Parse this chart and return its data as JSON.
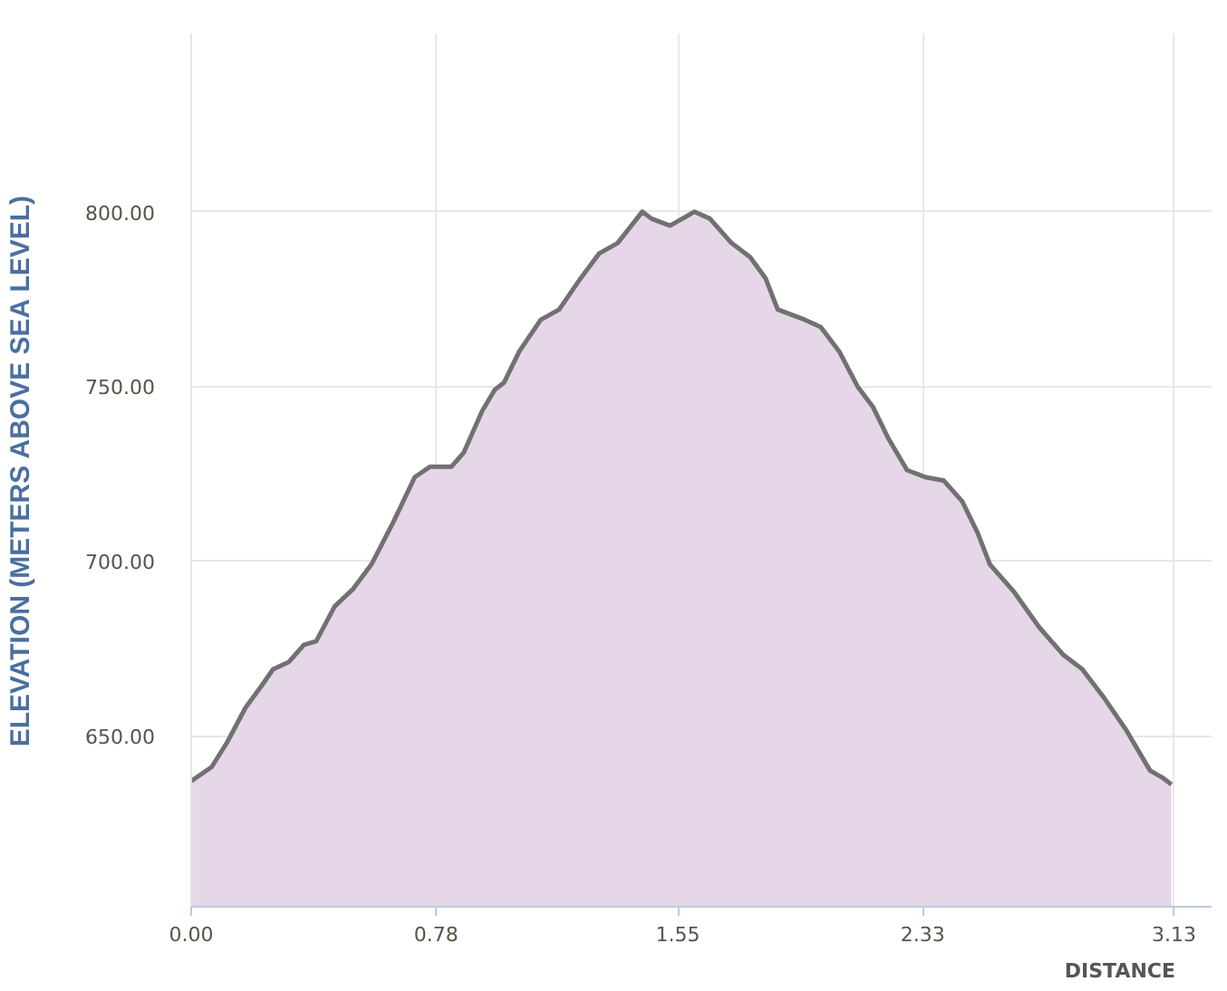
{
  "chart_data": {
    "type": "area",
    "xlabel": "DISTANCE",
    "ylabel": "ELEVATION (METERS ABOVE SEA LEVEL)",
    "x": [
      0,
      0.065,
      0.114,
      0.173,
      0.222,
      0.261,
      0.31,
      0.359,
      0.398,
      0.457,
      0.516,
      0.574,
      0.643,
      0.712,
      0.761,
      0.829,
      0.868,
      0.927,
      0.967,
      0.996,
      1.045,
      1.113,
      1.172,
      1.241,
      1.299,
      1.358,
      1.437,
      1.466,
      1.525,
      1.603,
      1.652,
      1.721,
      1.78,
      1.829,
      1.868,
      1.927,
      1.956,
      2.005,
      2.064,
      2.122,
      2.172,
      2.221,
      2.28,
      2.338,
      2.397,
      2.456,
      2.505,
      2.544,
      2.622,
      2.701,
      2.779,
      2.838,
      2.906,
      2.975,
      3.054,
      3.093,
      3.122
    ],
    "series": [
      {
        "color": "#e6d7e8",
        "values": [
          637,
          641,
          648,
          658,
          664,
          669,
          671,
          676,
          677,
          687,
          692,
          699,
          711,
          724,
          727,
          727,
          731,
          743,
          749,
          751,
          760,
          769,
          772,
          781,
          788,
          791,
          800,
          798,
          796,
          800,
          798,
          791,
          787,
          781,
          772,
          770,
          769,
          767,
          760,
          750,
          744,
          735,
          726,
          724,
          723,
          717,
          708,
          699,
          691,
          681,
          673,
          669,
          661,
          652,
          640,
          638,
          636
        ]
      }
    ],
    "xlim": [
      0,
      3.25
    ],
    "ylim": [
      601,
      851
    ],
    "xticks": [
      {
        "value": 0,
        "label": "0.00"
      },
      {
        "value": 0.78,
        "label": "0.78"
      },
      {
        "value": 1.55,
        "label": "1.55"
      },
      {
        "value": 2.33,
        "label": "2.33"
      },
      {
        "value": 3.13,
        "label": "3.13"
      }
    ],
    "yticks": [
      {
        "value": 650,
        "label": "650.00"
      },
      {
        "value": 700,
        "label": "700.00"
      },
      {
        "value": 750,
        "label": "750.00"
      },
      {
        "value": 800,
        "label": "800.00"
      }
    ],
    "grid": true
  }
}
